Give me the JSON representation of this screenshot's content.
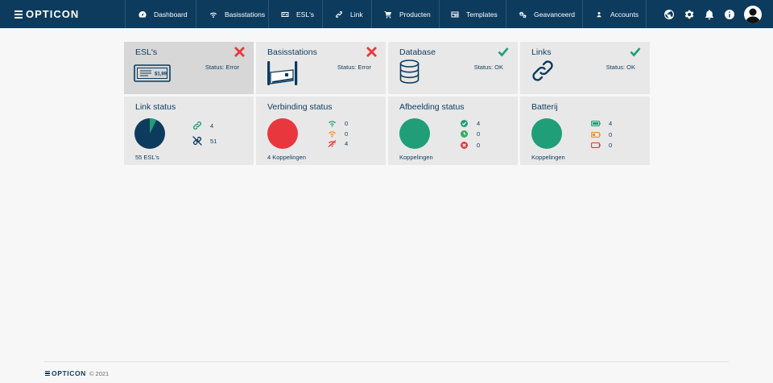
{
  "brand": {
    "name": "OPTICON"
  },
  "nav": {
    "items": [
      {
        "label": "Dashboard",
        "icon": "dashboard-icon"
      },
      {
        "label": "Basisstations",
        "icon": "wifi-icon"
      },
      {
        "label": "ESL's",
        "icon": "esl-icon"
      },
      {
        "label": "Link",
        "icon": "link-icon"
      },
      {
        "label": "Producten",
        "icon": "cart-icon"
      },
      {
        "label": "Templates",
        "icon": "template-icon"
      },
      {
        "label": "Geavanceerd",
        "icon": "gears-icon"
      },
      {
        "label": "Accounts",
        "icon": "user-icon"
      }
    ],
    "right_icons": [
      "globe-icon",
      "gear-icon",
      "bell-icon",
      "info-icon",
      "avatar"
    ]
  },
  "status_cards": [
    {
      "title": "ESL's",
      "status": "Status: Error",
      "state": "error"
    },
    {
      "title": "Basisstations",
      "status": "Status: Error",
      "state": "error"
    },
    {
      "title": "Database",
      "status": "Status: OK",
      "state": "ok"
    },
    {
      "title": "Links",
      "status": "Status: OK",
      "state": "ok"
    }
  ],
  "esl_price": "$1,99",
  "link_status": {
    "title": "Link status",
    "linked": "4",
    "unlinked": "51",
    "footer": "55 ESL's",
    "linked_fraction": 0.073
  },
  "verbinding_status": {
    "title": "Verbinding status",
    "good": "0",
    "medium": "0",
    "bad": "4",
    "footer": "4 Koppelingen"
  },
  "afbeelding_status": {
    "title": "Afbeelding status",
    "done": "4",
    "pending": "0",
    "failed": "0",
    "footer": "Koppelingen"
  },
  "batterij": {
    "title": "Batterij",
    "full": "4",
    "medium": "0",
    "low": "0",
    "footer": "Koppelingen"
  },
  "colors": {
    "navy": "#0c3b5e",
    "green": "#1f9e78",
    "red": "#e8383d",
    "orange": "#f08a2c",
    "card": "#e8e8e8"
  },
  "footer": {
    "brand": "OPTICON",
    "copyright": "© 2021"
  }
}
